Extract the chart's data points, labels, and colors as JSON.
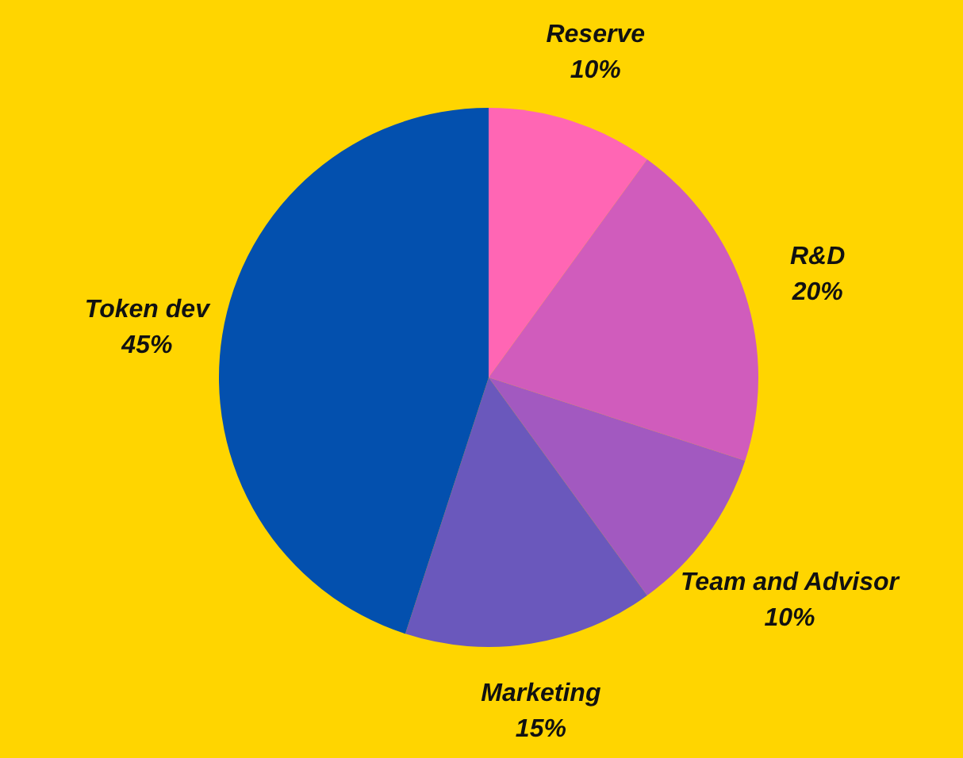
{
  "chart_data": {
    "type": "pie",
    "categories": [
      "Reserve",
      "R&D",
      "Team and Advisor",
      "Marketing",
      "Token dev"
    ],
    "values": [
      10,
      20,
      10,
      15,
      45
    ],
    "colors": [
      "#ff66b4",
      "#d05cbc",
      "#a259c0",
      "#6a58bc",
      "#0350ae"
    ],
    "value_labels": [
      "10%",
      "20%",
      "10%",
      "15%",
      "45%"
    ]
  }
}
